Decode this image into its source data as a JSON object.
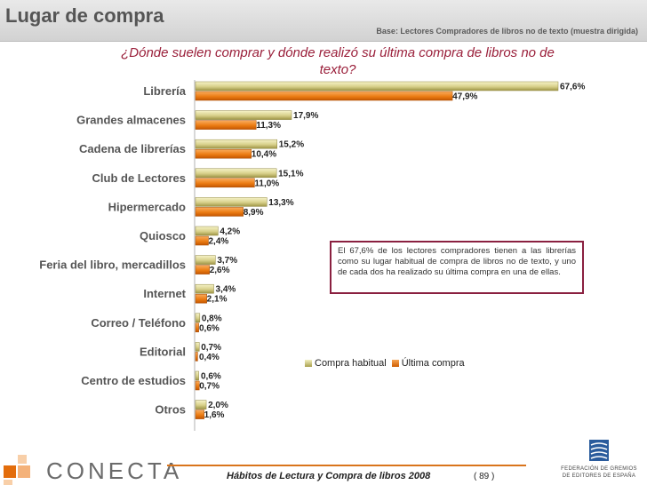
{
  "header": {
    "title": "Lugar de compra",
    "base_note": "Base: Lectores Compradores de libros no de texto (muestra dirigida)"
  },
  "chart_data": {
    "type": "bar",
    "orientation": "horizontal",
    "title": "¿Dónde suelen comprar y dónde realizó su última compra de libros no de texto?",
    "categories": [
      "Librería",
      "Grandes almacenes",
      "Cadena de librerías",
      "Club de Lectores",
      "Hipermercado",
      "Quiosco",
      "Feria del libro, mercadillos",
      "Internet",
      "Correo / Teléfono",
      "Editorial",
      "Centro de estudios",
      "Otros"
    ],
    "series": [
      {
        "name": "Compra habitual",
        "values": [
          67.6,
          17.9,
          15.2,
          15.1,
          13.3,
          4.2,
          3.7,
          3.4,
          0.8,
          0.7,
          0.6,
          2.0
        ],
        "labels": [
          "67,6%",
          "17,9%",
          "15,2%",
          "15,1%",
          "13,3%",
          "4,2%",
          "3,7%",
          "3,4%",
          "0,8%",
          "0,7%",
          "0,6%",
          "2,0%"
        ],
        "color": "#c9c172"
      },
      {
        "name": "Última compra",
        "values": [
          47.9,
          11.3,
          10.4,
          11.0,
          8.9,
          2.4,
          2.6,
          2.1,
          0.6,
          0.4,
          0.7,
          1.6
        ],
        "labels": [
          "47,9%",
          "11,3%",
          "10,4%",
          "11,0%",
          "8,9%",
          "2,4%",
          "2,6%",
          "2,1%",
          "0,6%",
          "0,4%",
          "0,7%",
          "1,6%"
        ],
        "color": "#e87a10"
      }
    ],
    "xlim": [
      0,
      70
    ],
    "xlabel": "",
    "ylabel": "",
    "legend_position": "bottom-right"
  },
  "callout": {
    "text": "El 67,6% de los lectores compradores tienen a las librerías como su lugar habitual de compra de libros no de texto, y uno de cada dos ha realizado su última compra en una de ellas."
  },
  "footer": {
    "publication": "Hábitos de Lectura y Compra de libros 2008",
    "page": "( 89 )",
    "logo_left": "CONECTA",
    "logo_right_lines": [
      "FEDERACIÓN DE GREMIOS",
      "DE EDITORES DE ESPAÑA"
    ]
  },
  "colors": {
    "accent": "#9a1f3a",
    "footer_line": "#d9741c"
  }
}
